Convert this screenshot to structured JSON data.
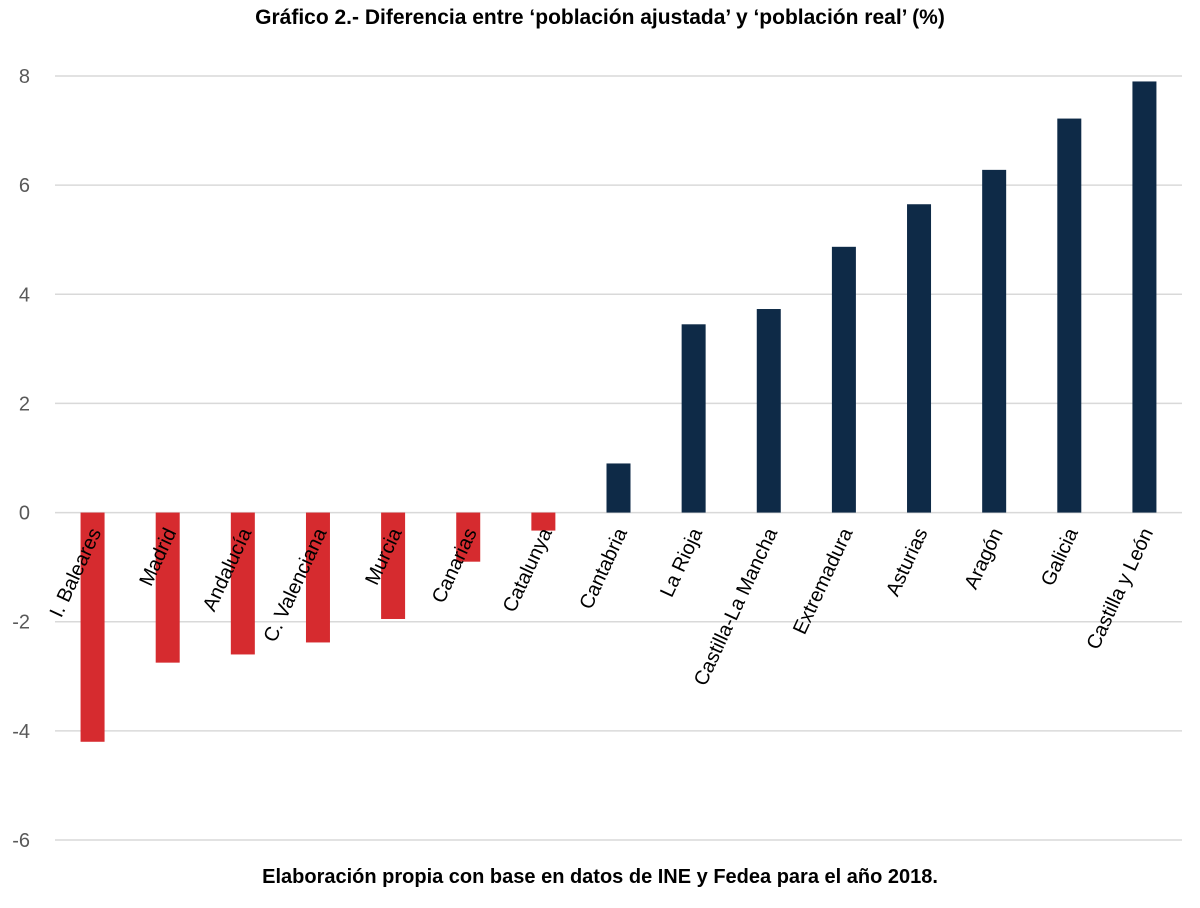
{
  "title": "Gráfico 2.- Diferencia entre ‘población ajustada’ y ‘población real’ (%)",
  "footer": "Elaboración propia con base en datos de INE y Fedea para el año 2018.",
  "colors": {
    "negative": "#d62b2f",
    "positive": "#0e2a47",
    "grid": "#d9d9d9"
  },
  "chart_data": {
    "type": "bar",
    "title": "Gráfico 2.- Diferencia entre ‘población ajustada’ y ‘población real’ (%)",
    "xlabel": "",
    "ylabel": "",
    "ylim": [
      -6,
      8
    ],
    "yticks": [
      -6,
      -4,
      -2,
      0,
      2,
      4,
      6,
      8
    ],
    "grid": true,
    "categories": [
      "I. Baleares",
      "Madrid",
      "Andalucía",
      "C. Valenciana",
      "Murcia",
      "Canarias",
      "Catalunya",
      "Cantabria",
      "La Rioja",
      "Castilla-La Mancha",
      "Extremadura",
      "Asturias",
      "Aragón",
      "Galicia",
      "Castilla y León"
    ],
    "values": [
      -4.2,
      -2.75,
      -2.6,
      -2.38,
      -1.95,
      -0.9,
      -0.33,
      0.9,
      3.45,
      3.73,
      4.87,
      5.65,
      6.28,
      7.22,
      7.9
    ]
  }
}
